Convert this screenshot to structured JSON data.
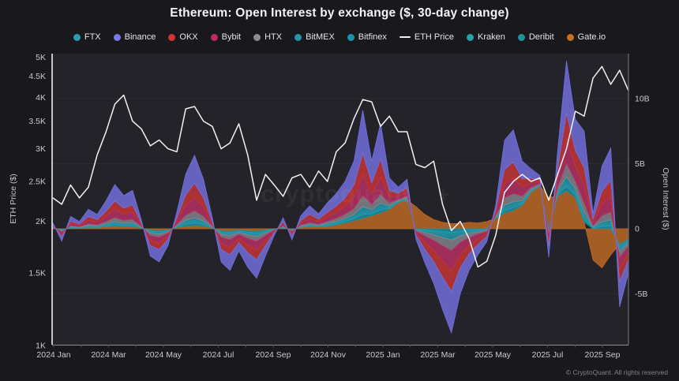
{
  "page": {
    "watermark": "CryptoQuant",
    "watermark_symbol": "+",
    "footer": "© CryptoQuant. All rights reserved"
  },
  "legend": {
    "items": [
      {
        "label": "FTX",
        "color": "#2b9daa",
        "marker": "dot"
      },
      {
        "label": "Binance",
        "color": "#7b79e6",
        "marker": "dot"
      },
      {
        "label": "OKX",
        "color": "#cf3535",
        "marker": "dot"
      },
      {
        "label": "Bybit",
        "color": "#c02a62",
        "marker": "dot"
      },
      {
        "label": "HTX",
        "color": "#8b8b95",
        "marker": "dot"
      },
      {
        "label": "BitMEX",
        "color": "#2495a5",
        "marker": "dot"
      },
      {
        "label": "Bitfinex",
        "color": "#1f8fb0",
        "marker": "dot"
      },
      {
        "label": "ETH Price",
        "color": "#f2f2f4",
        "marker": "line"
      },
      {
        "label": "Kraken",
        "color": "#28a0b0",
        "marker": "dot"
      },
      {
        "label": "Deribit",
        "color": "#1d93a0",
        "marker": "dot"
      },
      {
        "label": "Gate.io",
        "color": "#c7701f",
        "marker": "dot"
      }
    ]
  },
  "axes": {
    "left": {
      "label": "ETH Price ($)",
      "scale": "log",
      "ticks": [
        {
          "v": 5,
          "label": "5K"
        },
        {
          "v": 4.5,
          "label": "4.5K"
        },
        {
          "v": 4,
          "label": "4K"
        },
        {
          "v": 3.5,
          "label": "3.5K"
        },
        {
          "v": 3,
          "label": "3K"
        },
        {
          "v": 2.5,
          "label": "2.5K"
        },
        {
          "v": 2,
          "label": "2K"
        },
        {
          "v": 1.5,
          "label": "1.5K"
        },
        {
          "v": 1,
          "label": "1K"
        }
      ]
    },
    "right": {
      "label": "Open Interest ($)",
      "scale": "linear",
      "ticks": [
        {
          "v": 10,
          "label": "10B"
        },
        {
          "v": 5,
          "label": "5B"
        },
        {
          "v": 0,
          "label": "0"
        },
        {
          "v": -5,
          "label": "-5B"
        }
      ]
    },
    "x": {
      "ticks": [
        {
          "m": 0,
          "label": "2024 Jan"
        },
        {
          "m": 2,
          "label": "2024 Mar"
        },
        {
          "m": 4,
          "label": "2024 May"
        },
        {
          "m": 6,
          "label": "2024 Jul"
        },
        {
          "m": 8,
          "label": "2024 Sep"
        },
        {
          "m": 10,
          "label": "2024 Nov"
        },
        {
          "m": 12,
          "label": "2025 Jan"
        },
        {
          "m": 14,
          "label": "2025 Mar"
        },
        {
          "m": 16,
          "label": "2025 May"
        },
        {
          "m": 18,
          "label": "2025 Jul"
        },
        {
          "m": 20,
          "label": "2025 Sep"
        }
      ]
    }
  },
  "chart_data": {
    "type": "area",
    "stacked": true,
    "title": "Ethereum: Open Interest by exchange ($, 30-day change)",
    "x_start": "2024-01-01",
    "x_step_months": 0.32,
    "n_points": 66,
    "ylim_left_usd_k": [
      1,
      5
    ],
    "ylim_right_b": [
      -9,
      13.5
    ],
    "grid": "horizontal-right-axis",
    "legend_position": "top",
    "eth_price_usd_k": [
      2.28,
      2.2,
      2.45,
      2.28,
      2.42,
      2.9,
      3.3,
      3.85,
      4.05,
      3.5,
      3.35,
      3.05,
      3.15,
      3.0,
      2.95,
      3.75,
      3.8,
      3.5,
      3.4,
      3.0,
      3.1,
      3.45,
      2.9,
      2.25,
      2.6,
      2.45,
      2.3,
      2.55,
      2.6,
      2.42,
      2.65,
      2.5,
      2.95,
      3.1,
      3.55,
      3.95,
      3.9,
      3.4,
      3.6,
      3.3,
      3.3,
      2.75,
      2.7,
      2.8,
      2.2,
      1.9,
      2.0,
      1.82,
      1.55,
      1.6,
      1.85,
      2.35,
      2.5,
      2.6,
      2.5,
      2.55,
      2.25,
      2.6,
      3.0,
      3.7,
      3.6,
      4.45,
      4.75,
      4.3,
      4.65,
      4.15
    ],
    "oi_change_total_ex_gateio_b": [
      0.4,
      -0.9,
      0.9,
      0.5,
      1.4,
      1.0,
      2.0,
      3.2,
      2.4,
      2.8,
      0.6,
      -2.0,
      -2.4,
      -1.2,
      1.2,
      4.0,
      5.4,
      3.6,
      0.8,
      -2.4,
      -3.0,
      -1.6,
      -2.8,
      -3.6,
      -2.0,
      -0.5,
      0.8,
      -0.8,
      0.9,
      1.6,
      1.0,
      1.8,
      2.4,
      3.2,
      4.6,
      8.3,
      4.2,
      6.9,
      2.4,
      1.2,
      1.6,
      -0.8,
      -2.6,
      -4.2,
      -6.2,
      -8.0,
      -5.0,
      -3.2,
      -2.0,
      -1.0,
      1.0,
      5.6,
      6.2,
      3.4,
      1.8,
      0.8,
      -2.2,
      3.5,
      10.0,
      6.0,
      7.0,
      1.2,
      4.8,
      6.2,
      -4.8,
      -2.6
    ],
    "gateio_oi_change_b": [
      0.05,
      -0.05,
      0.05,
      0.05,
      0.1,
      0.1,
      0.15,
      0.2,
      0.15,
      0.15,
      0.05,
      -0.1,
      -0.15,
      -0.1,
      0.1,
      0.2,
      0.25,
      0.2,
      0.05,
      -0.15,
      -0.2,
      -0.1,
      -0.15,
      -0.2,
      -0.1,
      0.0,
      0.05,
      -0.05,
      0.1,
      0.15,
      0.15,
      0.2,
      0.3,
      0.45,
      0.6,
      0.8,
      1.0,
      1.2,
      1.5,
      2.0,
      2.2,
      1.7,
      1.1,
      0.7,
      0.5,
      0.4,
      0.4,
      0.5,
      0.45,
      0.55,
      0.8,
      1.2,
      1.4,
      1.8,
      2.8,
      3.3,
      2.4,
      2.5,
      2.9,
      2.4,
      0.5,
      -2.4,
      -3.0,
      -2.0,
      -1.2,
      -0.8
    ],
    "exchange_share_of_total": {
      "Binance": 0.4,
      "OKX": 0.2,
      "Bybit": 0.19,
      "HTX": 0.1,
      "BitMEX": 0.03,
      "Deribit": 0.035,
      "Kraken": 0.025,
      "Bitfinex": 0.015,
      "FTX": 0.005
    },
    "stack_order": [
      "Gate.io",
      "Deribit",
      "Kraken",
      "Bitfinex",
      "BitMEX",
      "FTX",
      "HTX",
      "Bybit",
      "OKX",
      "Binance"
    ],
    "colors": {
      "FTX": "#2b9daa",
      "Binance": "#7472e0",
      "OKX": "#c93434",
      "Bybit": "#bb2f64",
      "HTX": "#85858f",
      "BitMEX": "#2495a5",
      "Bitfinex": "#1f8fb0",
      "ETH Price": "#f2f2f4",
      "Kraken": "#28a0b0",
      "Deribit": "#1d93a0",
      "Gate.io": "#c06a25"
    },
    "plot_background": "#232329",
    "outer_background": "#18181d",
    "gridline_color": "#2b2b33"
  }
}
